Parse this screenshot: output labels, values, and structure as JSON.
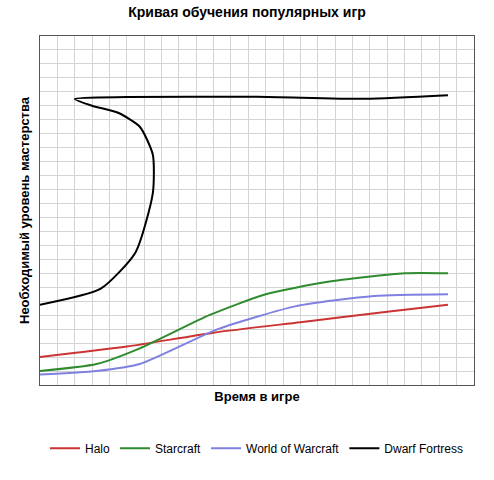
{
  "chart_data": {
    "type": "line",
    "title": "Кривая обучения популярных игр",
    "x_label": "Время в игре",
    "y_label": "Необходимый уровень мастерства",
    "xlim": [
      0,
      100
    ],
    "ylim": [
      0,
      100
    ],
    "xticks": [
      0,
      4,
      8,
      12,
      16,
      20,
      24,
      28,
      32,
      36,
      40,
      44,
      48,
      52,
      56,
      60,
      64,
      68,
      72,
      76,
      80,
      84,
      88,
      92,
      96,
      100
    ],
    "yticks": [
      0,
      4,
      8,
      12,
      16,
      20,
      24,
      28,
      32,
      36,
      40,
      44,
      48,
      52,
      56,
      60,
      64,
      68,
      72,
      76,
      80,
      84,
      88,
      92,
      96,
      100
    ],
    "grid": true,
    "tick_labels": false,
    "legend": "bottom",
    "series": [
      {
        "name": "Halo",
        "color": "#cc3333",
        "x": [
          0,
          20,
          40,
          60,
          80,
          94
        ],
        "values": [
          8,
          11,
          15,
          18,
          21,
          23
        ]
      },
      {
        "name": "Starcraft",
        "color": "#2e8b2e",
        "x": [
          0,
          13,
          23,
          39,
          52,
          66,
          84,
          94
        ],
        "values": [
          4,
          6,
          10.5,
          20,
          26,
          29.5,
          32,
          32
        ]
      },
      {
        "name": "World of Warcraft",
        "color": "#8080e0",
        "x": [
          0,
          13,
          23,
          41,
          59,
          77,
          94
        ],
        "values": [
          3,
          4,
          6,
          16,
          22.6,
          25.5,
          26
        ]
      },
      {
        "name": "Dwarf Fortress",
        "color": "#000000",
        "x": [
          0,
          14,
          22,
          26,
          26,
          23,
          18,
          12,
          8,
          20,
          50,
          75,
          94
        ],
        "values": [
          23,
          27.6,
          38,
          55,
          66,
          74,
          78,
          80,
          82,
          82.5,
          82.6,
          82,
          83
        ]
      }
    ]
  }
}
